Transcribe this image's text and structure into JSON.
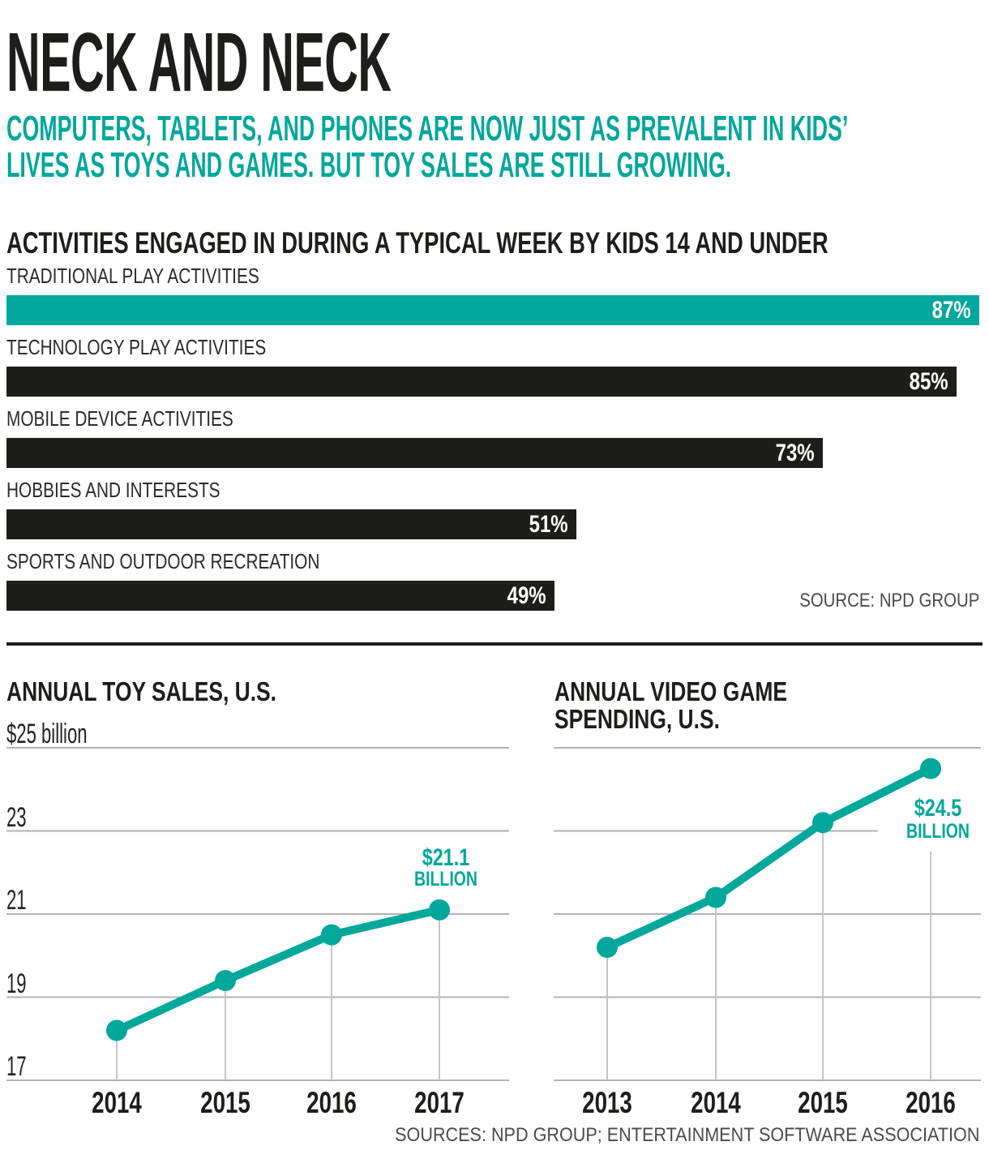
{
  "header": {
    "title": "NECK AND NECK",
    "subtitle_lines": [
      "COMPUTERS, TABLETS, AND PHONES ARE NOW JUST AS PREVALENT IN KIDS’",
      "LIVES AS TOYS AND GAMES. BUT TOY SALES ARE STILL GROWING."
    ]
  },
  "bar_section": {
    "heading": "ACTIVITIES ENGAGED IN DURING A TYPICAL WEEK BY KIDS 14 AND UNDER",
    "source": "SOURCE: NPD GROUP"
  },
  "footer": {
    "sources": "SOURCES: NPD GROUP; ENTERTAINMENT SOFTWARE ASSOCIATION"
  },
  "colors": {
    "teal": "#00a79b",
    "ink": "#1d1d1b",
    "grid": "#b3b3b3",
    "tick_line": "#c6c6c6",
    "white": "#ffffff"
  },
  "chart_data": [
    {
      "type": "bar",
      "title": "ACTIVITIES ENGAGED IN DURING A TYPICAL WEEK BY KIDS 14 AND UNDER",
      "orientation": "horizontal",
      "categories": [
        "TRADITIONAL PLAY ACTIVITIES",
        "TECHNOLOGY PLAY ACTIVITIES",
        "MOBILE DEVICE ACTIVITIES",
        "HOBBIES AND INTERESTS",
        "SPORTS AND OUTDOOR RECREATION"
      ],
      "values": [
        87,
        85,
        73,
        51,
        49
      ],
      "value_labels": [
        "87%",
        "85%",
        "73%",
        "51%",
        "49%"
      ],
      "highlight_index": 0,
      "xlim": [
        0,
        87
      ],
      "source": "SOURCE: NPD GROUP"
    },
    {
      "type": "line",
      "title": "ANNUAL TOY SALES, U.S.",
      "x": [
        "2014",
        "2015",
        "2016",
        "2017"
      ],
      "values": [
        18.2,
        19.4,
        20.5,
        21.1
      ],
      "unit": "billions of dollars",
      "ylim": [
        17,
        25
      ],
      "grid_values": [
        25,
        23,
        21,
        19,
        17
      ],
      "ylabels": [
        "$25 billion",
        "23",
        "21",
        "19",
        "17"
      ],
      "grid": "on",
      "callout_lines": [
        "$21.1",
        "BILLION"
      ],
      "callout_value": 21.1
    },
    {
      "type": "line",
      "title": "ANNUAL VIDEO GAME SPENDING, U.S.",
      "title_lines": [
        "ANNUAL VIDEO GAME",
        "SPENDING, U.S."
      ],
      "x": [
        "2013",
        "2014",
        "2015",
        "2016"
      ],
      "values": [
        20.2,
        21.4,
        23.2,
        24.5
      ],
      "unit": "billions of dollars",
      "ylim": [
        17,
        25
      ],
      "grid_values": [
        25,
        23,
        21,
        19,
        17
      ],
      "ylabels": [],
      "grid": "on",
      "callout_lines": [
        "$24.5",
        "BILLION"
      ],
      "callout_value": 24.5
    }
  ]
}
